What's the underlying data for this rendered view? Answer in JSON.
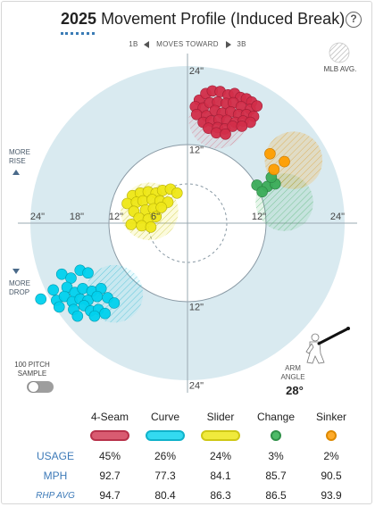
{
  "header": {
    "year": "2025",
    "title": "Movement Profile (Induced Break)",
    "help": "?"
  },
  "direction": {
    "left": "1B",
    "middle": "MOVES TOWARD",
    "right": "3B"
  },
  "mlb_avg_label": "MLB AVG.",
  "side_labels": {
    "rise": [
      "MORE",
      "RISE"
    ],
    "drop": [
      "MORE",
      "DROP"
    ]
  },
  "sample": {
    "label_line1": "100 PITCH",
    "label_line2": "SAMPLE",
    "enabled": false
  },
  "arm_angle": {
    "label_line1": "ARM",
    "label_line2": "ANGLE",
    "value": "28°",
    "degrees": 28
  },
  "colors": {
    "4-Seam": "#d22d49",
    "Curve": "#00d1ed",
    "Slider": "#eee716",
    "Change": "#3bac59",
    "Sinker": "#fe9d00",
    "plot_bg": "#d9eaf0"
  },
  "table": {
    "columns": [
      "4-Seam",
      "Curve",
      "Slider",
      "Change",
      "Sinker"
    ],
    "rows": [
      {
        "label": "USAGE",
        "values": [
          "45%",
          "26%",
          "24%",
          "3%",
          "2%"
        ]
      },
      {
        "label": "MPH",
        "values": [
          "92.7",
          "77.3",
          "84.1",
          "85.7",
          "90.5"
        ]
      },
      {
        "label": "RHP AVG",
        "values": [
          "94.7",
          "80.4",
          "86.3",
          "86.5",
          "93.9"
        ]
      }
    ]
  },
  "chart_data": {
    "type": "scatter",
    "xlim": [
      -24,
      24
    ],
    "ylim": [
      -24,
      24
    ],
    "ring_labels": {
      "top": [
        "24\"",
        "12\""
      ],
      "bottom": [
        "12\"",
        "24\""
      ],
      "left": [
        "24\"",
        "18\"",
        "12\"",
        "6\""
      ],
      "right": [
        "12\"",
        "24\""
      ]
    },
    "series": [
      {
        "name": "4-Seam",
        "mlb_avg": {
          "x": 4.6,
          "y": 15.8
        },
        "points": [
          [
            1.8,
            18.8
          ],
          [
            2.8,
            19.8
          ],
          [
            3.8,
            20.2
          ],
          [
            5,
            20.1
          ],
          [
            6.2,
            19.6
          ],
          [
            7.2,
            19.8
          ],
          [
            8.1,
            19.2
          ],
          [
            9,
            19
          ],
          [
            9.8,
            18.5
          ],
          [
            1.2,
            17.8
          ],
          [
            2.4,
            17.6
          ],
          [
            3.4,
            18.4
          ],
          [
            4.6,
            18.5
          ],
          [
            5.9,
            18.3
          ],
          [
            7,
            18.4
          ],
          [
            8.2,
            17.8
          ],
          [
            9.6,
            17.4
          ],
          [
            10.6,
            17.9
          ],
          [
            1.4,
            16.6
          ],
          [
            2.9,
            16.4
          ],
          [
            4.2,
            17.2
          ],
          [
            5.3,
            16.8
          ],
          [
            6.6,
            17
          ],
          [
            7.8,
            16.6
          ],
          [
            9,
            16.6
          ],
          [
            10.1,
            16.3
          ],
          [
            2.4,
            15.4
          ],
          [
            3.6,
            15.6
          ],
          [
            4.8,
            15.8
          ],
          [
            6,
            15.7
          ],
          [
            7.3,
            15.4
          ],
          [
            8.5,
            15.6
          ],
          [
            9.6,
            15.4
          ],
          [
            3.2,
            14.5
          ],
          [
            4.6,
            14.6
          ],
          [
            5.7,
            14.4
          ],
          [
            6.9,
            14.8
          ],
          [
            8.3,
            14.8
          ],
          [
            4.4,
            13.8
          ],
          [
            5.8,
            13.6
          ]
        ]
      },
      {
        "name": "Curve",
        "mlb_avg": {
          "x": -11.2,
          "y": -10.8
        },
        "points": [
          [
            -19.2,
            -7.8
          ],
          [
            -17.8,
            -8.4
          ],
          [
            -16.4,
            -7.2
          ],
          [
            -15.2,
            -7.6
          ],
          [
            -20.5,
            -10.2
          ],
          [
            -18.4,
            -9.8
          ],
          [
            -17.2,
            -10.6
          ],
          [
            -16,
            -10
          ],
          [
            -14.6,
            -10.4
          ],
          [
            -13.2,
            -10
          ],
          [
            -22.4,
            -11.6
          ],
          [
            -20,
            -11.8
          ],
          [
            -18.8,
            -11.2
          ],
          [
            -17.6,
            -12
          ],
          [
            -16.4,
            -11.6
          ],
          [
            -15.2,
            -11.8
          ],
          [
            -13.8,
            -11.2
          ],
          [
            -12.2,
            -11.4
          ],
          [
            -11.2,
            -12.2
          ],
          [
            -19.6,
            -12.8
          ],
          [
            -17.4,
            -13.2
          ],
          [
            -15.8,
            -12.6
          ],
          [
            -14.8,
            -13.4
          ],
          [
            -13.6,
            -13.2
          ],
          [
            -12.6,
            -13.8
          ],
          [
            -16.8,
            -14.2
          ],
          [
            -14.2,
            -14.2
          ]
        ]
      },
      {
        "name": "Slider",
        "mlb_avg": {
          "x": -5.8,
          "y": 1.8
        },
        "points": [
          [
            -8.4,
            4.2
          ],
          [
            -7.2,
            4.6
          ],
          [
            -6,
            4.8
          ],
          [
            -4.8,
            4.6
          ],
          [
            -3.8,
            5
          ],
          [
            -2.6,
            5.2
          ],
          [
            -1.6,
            4.6
          ],
          [
            -9.2,
            3
          ],
          [
            -7.8,
            3.2
          ],
          [
            -6.8,
            3.4
          ],
          [
            -5.4,
            3.6
          ],
          [
            -4.2,
            3.4
          ],
          [
            -3,
            3.2
          ],
          [
            -8.2,
            1.8
          ],
          [
            -6.4,
            2
          ],
          [
            -5.2,
            2.2
          ],
          [
            -4,
            2.4
          ],
          [
            -7.4,
            0.8
          ],
          [
            -6,
            0.6
          ],
          [
            -4.8,
            1
          ],
          [
            -8.6,
            -0.2
          ],
          [
            -7,
            -0.4
          ],
          [
            -5.6,
            -0.6
          ]
        ]
      },
      {
        "name": "Change",
        "mlb_avg": {
          "x": 14.8,
          "y": 3.2
        },
        "points": [
          [
            10.6,
            5.8
          ],
          [
            12.2,
            5.6
          ],
          [
            13.4,
            6
          ],
          [
            11.4,
            4.8
          ],
          [
            12.8,
            7
          ]
        ]
      },
      {
        "name": "Sinker",
        "mlb_avg": {
          "x": 16.2,
          "y": 9.6
        },
        "points": [
          [
            12.6,
            10.6
          ],
          [
            14.8,
            9.4
          ],
          [
            13.2,
            8.2
          ]
        ]
      }
    ]
  }
}
